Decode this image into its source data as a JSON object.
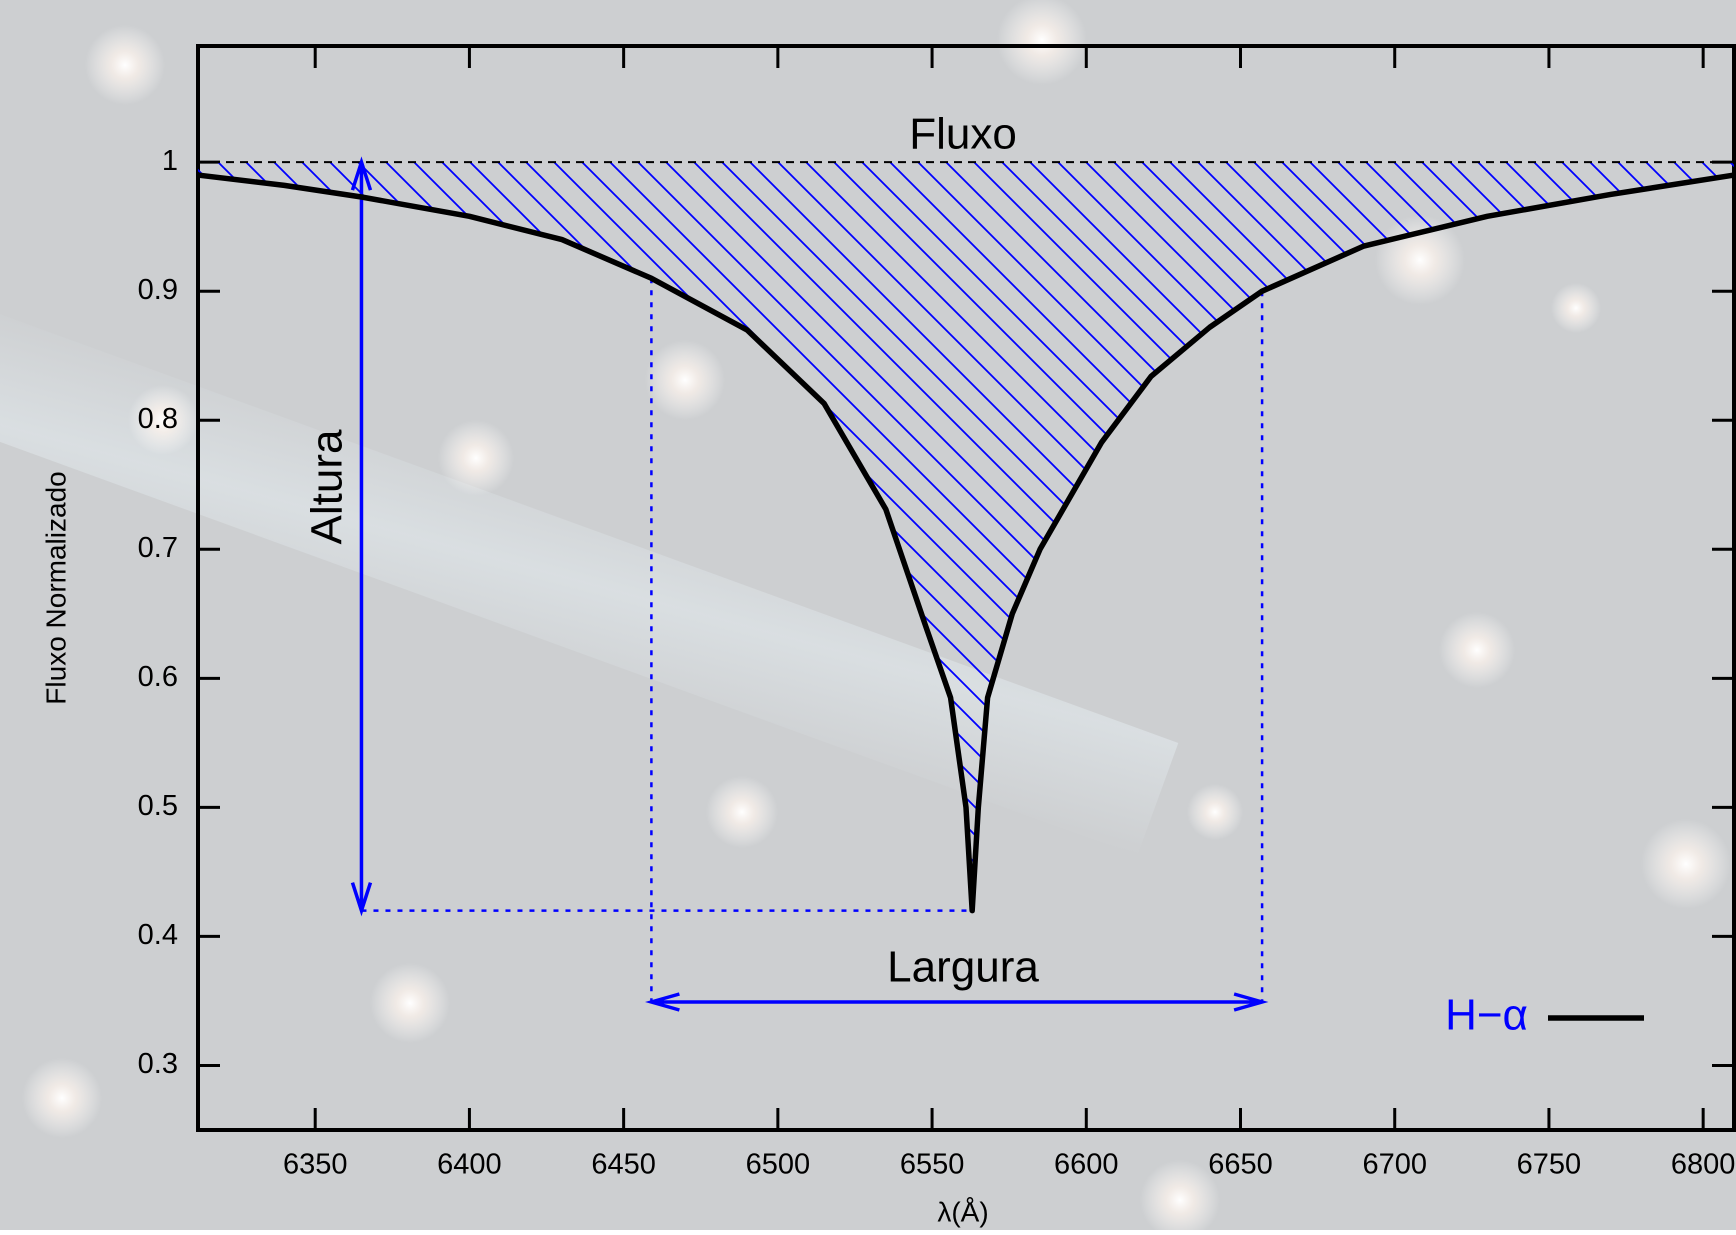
{
  "chart_data": {
    "type": "line",
    "x_label": "λ(Å)",
    "y_label": "Fluxo Normalizado",
    "annotations": {
      "area": "Fluxo",
      "height": "Altura",
      "width": "Largura"
    },
    "x": [
      6312,
      6340,
      6365,
      6400,
      6430,
      6459,
      6490,
      6515,
      6535,
      6548,
      6556,
      6561,
      6563,
      6565,
      6568,
      6576,
      6585,
      6605,
      6621,
      6640,
      6657,
      6690,
      6730,
      6770,
      6810
    ],
    "series": [
      {
        "name": "H−α",
        "color": "#000000",
        "label_color": "#0000ff",
        "values": [
          0.99,
          0.982,
          0.973,
          0.958,
          0.94,
          0.91,
          0.87,
          0.813,
          0.731,
          0.64,
          0.585,
          0.5,
          0.42,
          0.5,
          0.585,
          0.65,
          0.7,
          0.783,
          0.834,
          0.872,
          0.9,
          0.935,
          0.958,
          0.975,
          0.99
        ]
      }
    ],
    "continuum": 1,
    "xlim": [
      6312,
      6810
    ],
    "ylim": [
      0.25,
      1.09
    ],
    "xticks": [
      6350,
      6400,
      6450,
      6500,
      6550,
      6600,
      6650,
      6700,
      6750,
      6800
    ],
    "yticks": [
      0.3,
      0.4,
      0.5,
      0.6,
      0.7,
      0.8,
      0.9,
      1
    ],
    "hatch_color": "#0000ff",
    "legend": "lower right",
    "grid": false
  }
}
